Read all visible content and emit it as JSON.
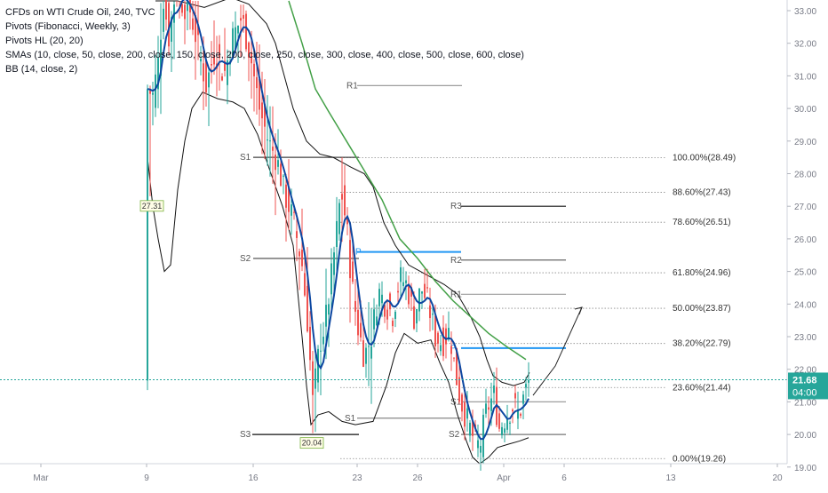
{
  "legend": {
    "title": "CFDs on WTI Crude Oil, 240, TVC",
    "indicators": [
      "Pivots (Fibonacci, Weekly, 3)",
      "Pivots HL (20, 20)",
      "SMAs (10, close, 50, close, 200, close, 150, close, 200, close, 250, close, 300, close, 400, close, 500, close, 600, close)",
      "BB (14, close, 2)"
    ]
  },
  "chart_data": {
    "type": "candlestick",
    "ylim": [
      18.85,
      33.3
    ],
    "x_ticks": [
      "Mar",
      "9",
      "16",
      "23",
      "26",
      "Apr",
      "6",
      "13",
      "20"
    ],
    "y_ticks": [
      "33.00",
      "32.00",
      "31.00",
      "30.00",
      "29.00",
      "28.00",
      "27.00",
      "26.00",
      "25.00",
      "24.00",
      "23.00",
      "22.00",
      "21.00",
      "20.00",
      "19.00"
    ],
    "last_price": "21.68",
    "countdown": "04:00",
    "fib_levels": [
      {
        "label": "100.00%(28.49)",
        "value": 28.49
      },
      {
        "label": "88.60%(27.43)",
        "value": 27.43
      },
      {
        "label": "78.60%(26.51)",
        "value": 26.51
      },
      {
        "label": "61.80%(24.96)",
        "value": 24.96
      },
      {
        "label": "50.00%(23.87)",
        "value": 23.87
      },
      {
        "label": "38.20%(22.79)",
        "value": 22.79
      },
      {
        "label": "23.60%(21.44)",
        "value": 21.44
      },
      {
        "label": "0.00%(19.26)",
        "value": 19.26
      }
    ],
    "pivots": [
      {
        "label": "R1",
        "value": 30.7,
        "color": "#9e9e9e"
      },
      {
        "label": "S1",
        "value": 28.5,
        "color": "#444444"
      },
      {
        "label": "S2",
        "value": 25.4,
        "color": "#444444"
      },
      {
        "label": "S3",
        "value": 20.0,
        "color": "#111111"
      },
      {
        "label": "R3",
        "value": 27.0,
        "color": "#111111"
      },
      {
        "label": "P",
        "value": 25.6,
        "color": "#2196f3"
      },
      {
        "label": "R2",
        "value": 25.35,
        "color": "#666666"
      },
      {
        "label": "S1",
        "value": 20.5,
        "color": "#888888"
      },
      {
        "label": "R1",
        "value": 24.3,
        "color": "#9e9e9e"
      },
      {
        "label": "P",
        "value": 22.65,
        "color": "#2196f3"
      },
      {
        "label": "S1",
        "value": 21.0,
        "color": "#9e9e9e"
      },
      {
        "label": "S2",
        "value": 20.0,
        "color": "#777777"
      }
    ],
    "hl_labels": [
      {
        "label": "27.31",
        "value": 27.31
      },
      {
        "label": "20.04",
        "value": 20.04
      }
    ],
    "colors": {
      "up": "#26a69a",
      "down": "#ef5350",
      "sma_blue": "#0d47a1",
      "sma_green": "#43a047",
      "bb": "#111111",
      "price_line": "#26a69a"
    }
  }
}
